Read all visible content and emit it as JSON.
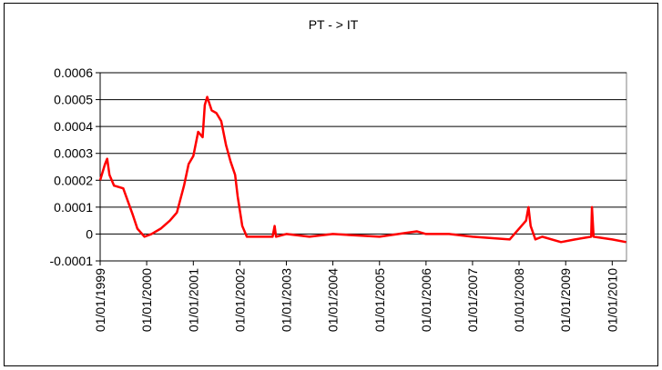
{
  "chart_data": {
    "type": "line",
    "title": "PT - > IT",
    "x": [
      "01/01/1999",
      "08/02/1999",
      "25/02/1999",
      "15/03/1999",
      "20/04/1999",
      "01/07/1999",
      "08/08/1999",
      "15/09/1999",
      "20/10/1999",
      "15/12/1999",
      "08/02/2000",
      "20/04/2000",
      "01/07/2000",
      "25/08/2000",
      "20/10/2000",
      "25/11/2000",
      "01/01/2001",
      "08/02/2001",
      "15/03/2001",
      "01/04/2001",
      "20/04/2001",
      "25/05/2001",
      "01/07/2001",
      "08/08/2001",
      "15/09/2001",
      "20/10/2001",
      "25/11/2001",
      "15/12/2001",
      "20/01/2002",
      "25/02/2002",
      "01/07/2002",
      "15/09/2002",
      "01/10/2002",
      "12/10/2002",
      "01/01/2003",
      "01/07/2003",
      "01/01/2004",
      "01/01/2005",
      "20/10/2005",
      "01/01/2006",
      "01/07/2006",
      "01/01/2007",
      "20/10/2007",
      "01/01/2008",
      "25/02/2008",
      "15/03/2008",
      "01/04/2008",
      "08/05/2008",
      "01/07/2008",
      "25/11/2008",
      "15/03/2009",
      "20/07/2009",
      "26/07/2009",
      "08/08/2009",
      "01/01/2010",
      "20/04/2010"
    ],
    "series": [
      {
        "name": "PT - > IT",
        "color": "#ff0000",
        "values": [
          0.0002,
          0.00026,
          0.00028,
          0.00022,
          0.00018,
          0.00017,
          0.00012,
          7e-05,
          2e-05,
          -1e-05,
          0.0,
          2e-05,
          5e-05,
          8e-05,
          0.00018,
          0.00026,
          0.00029,
          0.00038,
          0.00036,
          0.00048,
          0.00051,
          0.00046,
          0.00045,
          0.00042,
          0.00033,
          0.00027,
          0.00022,
          0.00014,
          3e-05,
          -1e-05,
          -1e-05,
          -1e-05,
          3e-05,
          -1e-05,
          0.0,
          -1e-05,
          0.0,
          -1e-05,
          1e-05,
          0.0,
          0.0,
          -1e-05,
          -2e-05,
          2e-05,
          5e-05,
          0.0001,
          3e-05,
          -2e-05,
          -1e-05,
          -3e-05,
          -2e-05,
          -1e-05,
          0.0001,
          -1e-05,
          -2e-05,
          -3e-05
        ]
      }
    ],
    "xlim": [
      "01/01/1999",
      "23/04/2010"
    ],
    "xticks": [
      "01/01/1999",
      "01/01/2000",
      "01/01/2001",
      "01/01/2002",
      "01/01/2003",
      "01/01/2004",
      "01/01/2005",
      "01/01/2006",
      "01/01/2007",
      "01/01/2008",
      "01/01/2009",
      "01/01/2010"
    ],
    "ylim": [
      -0.0001,
      0.0006
    ],
    "yticks": [
      0.0006,
      0.0005,
      0.0004,
      0.0003,
      0.0002,
      0.0001,
      0,
      -0.0001
    ],
    "grid": true
  }
}
